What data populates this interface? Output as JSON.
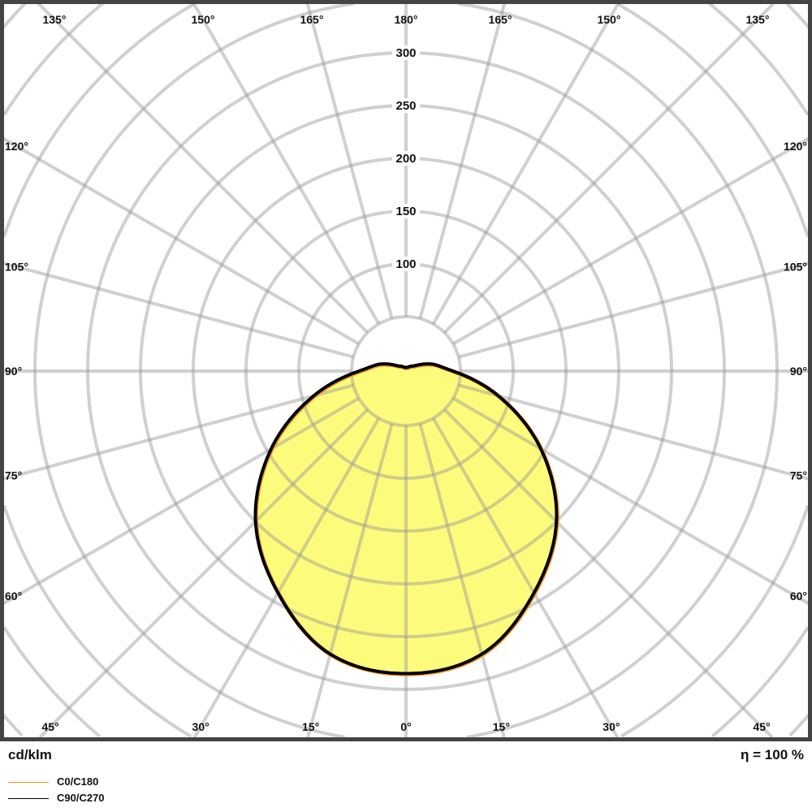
{
  "chart_data": {
    "type": "polar",
    "unit_label": "cd/klm",
    "efficiency_label": "η = 100 %",
    "radial_ticks": [
      100,
      150,
      200,
      250,
      300
    ],
    "radial_grid_step": 50,
    "angle_grid_step": 15,
    "angle_labels": [
      {
        "text": "135°",
        "angle": -135
      },
      {
        "text": "150°",
        "angle": -150
      },
      {
        "text": "165°",
        "angle": -165
      },
      {
        "text": "180°",
        "angle": 180
      },
      {
        "text": "165°",
        "angle": 165
      },
      {
        "text": "150°",
        "angle": 150
      },
      {
        "text": "135°",
        "angle": 135
      },
      {
        "text": "120°",
        "angle": -120
      },
      {
        "text": "105°",
        "angle": -105
      },
      {
        "text": "90°",
        "angle": -90
      },
      {
        "text": "75°",
        "angle": -75
      },
      {
        "text": "60°",
        "angle": -60
      },
      {
        "text": "120°",
        "angle": 120
      },
      {
        "text": "105°",
        "angle": 105
      },
      {
        "text": "90°",
        "angle": 90
      },
      {
        "text": "75°",
        "angle": 75
      },
      {
        "text": "60°",
        "angle": 60
      },
      {
        "text": "45°",
        "angle": -45
      },
      {
        "text": "30°",
        "angle": -30
      },
      {
        "text": "15°",
        "angle": -15
      },
      {
        "text": "0°",
        "angle": 0
      },
      {
        "text": "15°",
        "angle": 15
      },
      {
        "text": "30°",
        "angle": 30
      },
      {
        "text": "45°",
        "angle": 45
      }
    ],
    "angles": [
      0,
      15,
      30,
      45,
      60,
      75,
      90,
      105,
      120,
      135,
      150,
      165,
      180
    ],
    "series": [
      {
        "name": "C0/C180",
        "color": "#f39a1e",
        "values": [
          285,
          276,
          241,
          200,
          146,
          89,
          43,
          24,
          9,
          5,
          3,
          2,
          2
        ]
      },
      {
        "name": "C90/C270",
        "color": "#000000",
        "values": [
          285,
          276,
          241,
          200,
          146,
          89,
          43,
          24,
          9,
          5,
          3,
          2,
          2
        ]
      }
    ],
    "fill_color": "#fdfb7c",
    "grid_color": "#c8c8c8",
    "frame_color": "#444444"
  }
}
